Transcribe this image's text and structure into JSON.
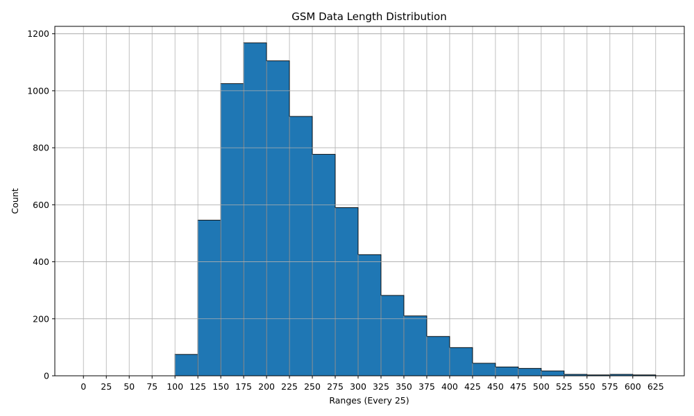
{
  "chart_data": {
    "type": "bar",
    "title": "GSM Data Length Distribution",
    "xlabel": "Ranges (Every 25)",
    "ylabel": "Count",
    "bin_width": 25,
    "bin_starts": [
      0,
      25,
      50,
      75,
      100,
      125,
      150,
      175,
      200,
      225,
      250,
      275,
      300,
      325,
      350,
      375,
      400,
      425,
      450,
      475,
      500,
      525,
      550,
      575,
      600
    ],
    "values": [
      0,
      0,
      0,
      0,
      75,
      546,
      1025,
      1168,
      1105,
      910,
      777,
      590,
      425,
      282,
      210,
      138,
      99,
      44,
      31,
      26,
      17,
      5,
      3,
      5,
      3
    ],
    "x_ticks": [
      "0",
      "25",
      "50",
      "75",
      "100",
      "125",
      "150",
      "175",
      "200",
      "225",
      "250",
      "275",
      "300",
      "325",
      "350",
      "375",
      "400",
      "425",
      "450",
      "475",
      "500",
      "525",
      "550",
      "575",
      "600",
      "625"
    ],
    "xlim": [
      -31.25,
      656.25
    ],
    "y_ticks": [
      "0",
      "200",
      "400",
      "600",
      "800",
      "1000",
      "1200"
    ],
    "ylim": [
      0,
      1226
    ],
    "grid": true,
    "bar_color": "#1f77b4",
    "edge_color": "#000000",
    "grid_color": "#b0b0b0"
  }
}
